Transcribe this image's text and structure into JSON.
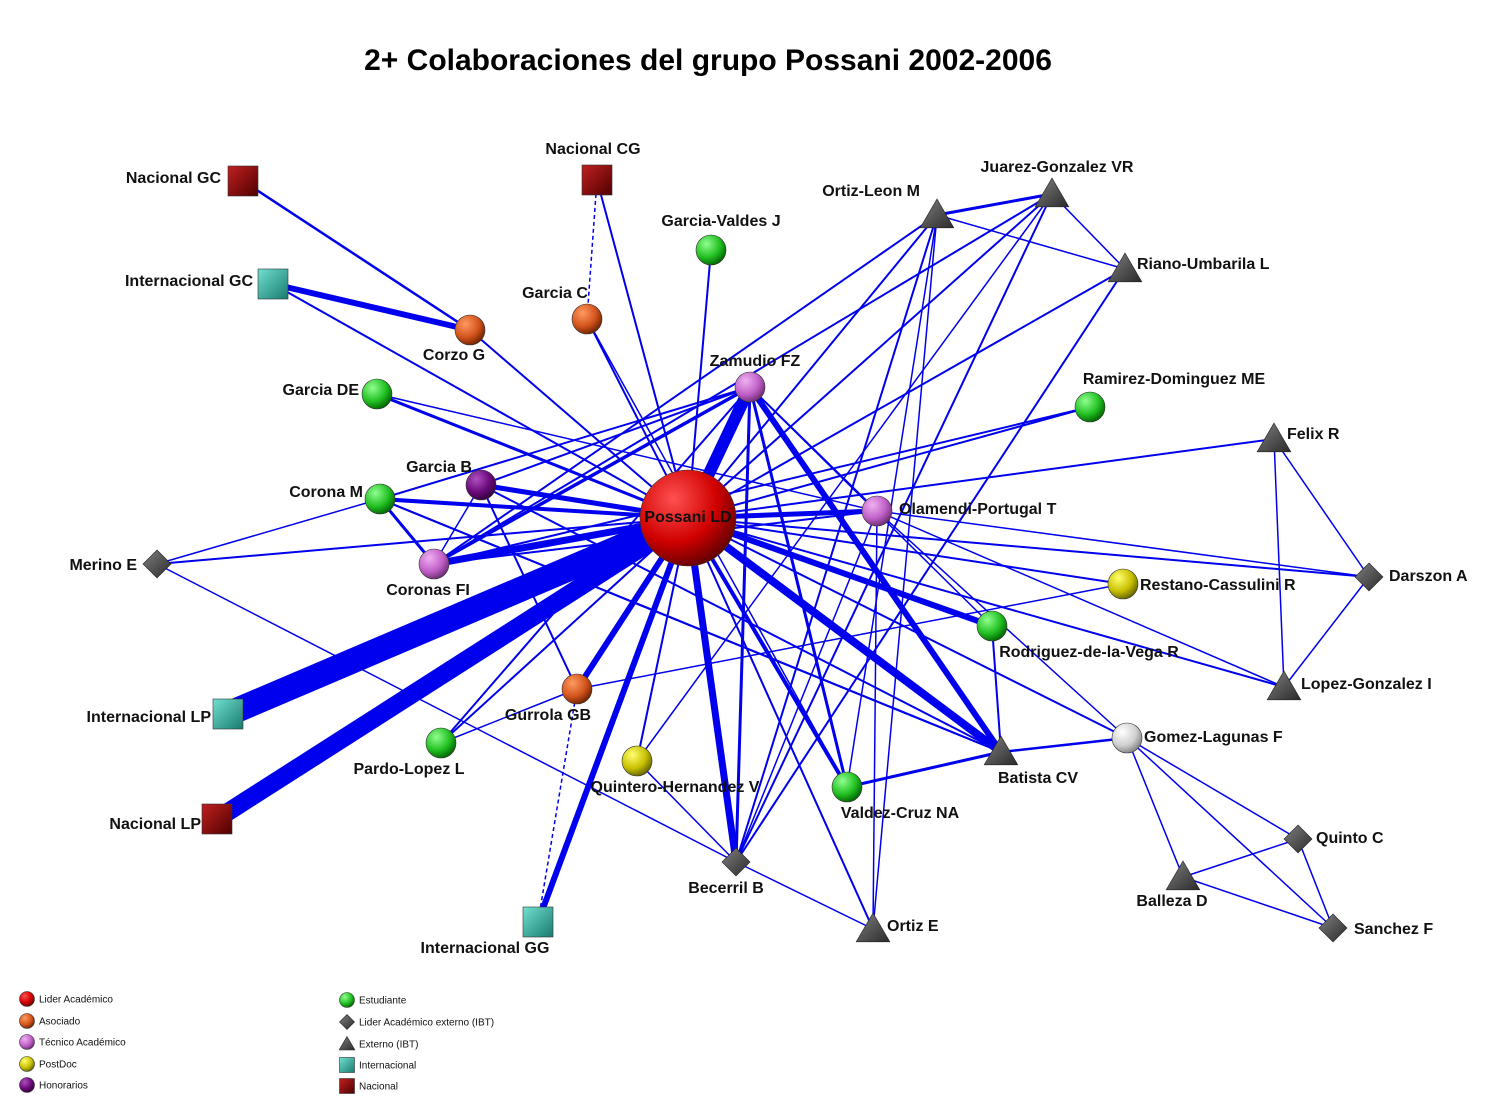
{
  "title": "2+ Colaboraciones del grupo Possani 2002-2006",
  "nodes": [
    {
      "label": "Possani LD"
    },
    {
      "label": "Nacional GC"
    },
    {
      "label": "Nacional CG"
    },
    {
      "label": "Internacional GC"
    },
    {
      "label": "Corzo G"
    },
    {
      "label": "Garcia C"
    },
    {
      "label": "Garcia-Valdes J"
    },
    {
      "label": "Zamudio FZ"
    },
    {
      "label": "Garcia DE"
    },
    {
      "label": "Garcia B"
    },
    {
      "label": "Corona M"
    },
    {
      "label": "Merino E"
    },
    {
      "label": "Coronas FI"
    },
    {
      "label": "Internacional LP"
    },
    {
      "label": "Nacional LP"
    },
    {
      "label": "Gurrola GB"
    },
    {
      "label": "Pardo-Lopez L"
    },
    {
      "label": "Quintero-Hernandez V"
    },
    {
      "label": "Internacional GG"
    },
    {
      "label": "Becerril B"
    },
    {
      "label": "Valdez-Cruz NA"
    },
    {
      "label": "Ortiz E"
    },
    {
      "label": "Batista CV"
    },
    {
      "label": "Rodriguez-de-la-Vega R"
    },
    {
      "label": "Olamendi-Portugal T"
    },
    {
      "label": "Ramirez-Dominguez ME"
    },
    {
      "label": "Restano-Cassulini R"
    },
    {
      "label": "Ortiz-Leon M"
    },
    {
      "label": "Juarez-Gonzalez VR"
    },
    {
      "label": "Riano-Umbarila L"
    },
    {
      "label": "Felix R"
    },
    {
      "label": "Darszon A"
    },
    {
      "label": "Lopez-Gonzalez I"
    },
    {
      "label": "Gomez-Lagunas F"
    },
    {
      "label": "Quinto C"
    },
    {
      "label": "Balleza D"
    },
    {
      "label": "Sanchez F"
    }
  ],
  "legend": [
    {
      "label": "Lider Académico"
    },
    {
      "label": "Asociado"
    },
    {
      "label": "Técnico Académico"
    },
    {
      "label": "PostDoc"
    },
    {
      "label": "Honorarios"
    },
    {
      "label": "Estudiante"
    },
    {
      "label": "Lider Académico externo (IBT)"
    },
    {
      "label": "Externo (IBT)"
    },
    {
      "label": "Internacional"
    },
    {
      "label": "Nacional"
    }
  ]
}
